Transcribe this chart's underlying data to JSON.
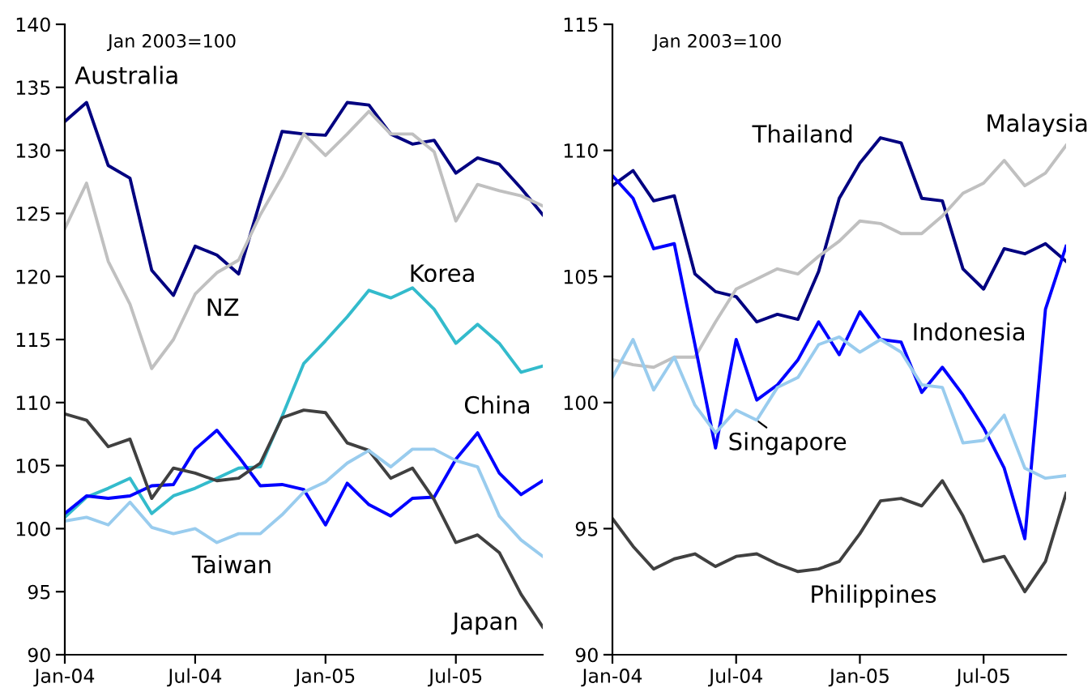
{
  "chart_data": [
    {
      "type": "line",
      "annotations": [
        "Jan 2003=100"
      ],
      "x": [
        "2004-01",
        "2004-02",
        "2004-03",
        "2004-04",
        "2004-05",
        "2004-06",
        "2004-07",
        "2004-08",
        "2004-09",
        "2004-10",
        "2004-11",
        "2004-12",
        "2005-01",
        "2005-02",
        "2005-03",
        "2005-04",
        "2005-05",
        "2005-06",
        "2005-07",
        "2005-08",
        "2005-09",
        "2005-10",
        "2005-11"
      ],
      "xlim": [
        "2004-01",
        "2005-11"
      ],
      "xticks": [
        {
          "value": "2004-01",
          "label": "Jan-04"
        },
        {
          "value": "2004-07",
          "label": "Jul-04"
        },
        {
          "value": "2005-01",
          "label": "Jan-05"
        },
        {
          "value": "2005-07",
          "label": "Jul-05"
        }
      ],
      "ylim": [
        90,
        140
      ],
      "yticks": [
        90,
        95,
        100,
        105,
        110,
        115,
        120,
        125,
        130,
        135,
        140
      ],
      "grid": false,
      "legend": false,
      "marker": "none",
      "line_style": "solid",
      "series": [
        {
          "name": "Australia",
          "color": "#000080",
          "values": [
            132.3,
            133.8,
            128.8,
            127.8,
            120.5,
            118.5,
            122.4,
            121.7,
            120.2,
            126.0,
            131.5,
            131.3,
            131.2,
            133.8,
            133.6,
            131.3,
            130.5,
            130.8,
            128.2,
            129.4,
            128.9,
            127.0,
            124.9
          ]
        },
        {
          "name": "NZ",
          "color": "#c0c0c0",
          "values": [
            123.8,
            127.4,
            121.2,
            117.8,
            112.7,
            115.0,
            118.6,
            120.3,
            121.3,
            124.9,
            127.9,
            131.3,
            129.6,
            131.3,
            133.1,
            131.3,
            131.3,
            129.9,
            124.4,
            127.3,
            126.8,
            126.4,
            125.6
          ]
        },
        {
          "name": "Korea",
          "color": "#33bbcc",
          "values": [
            100.9,
            102.5,
            103.2,
            104.0,
            101.2,
            102.6,
            103.2,
            104.0,
            104.8,
            104.9,
            108.9,
            113.1,
            114.9,
            116.8,
            118.9,
            118.3,
            119.1,
            117.4,
            114.7,
            116.2,
            114.7,
            112.4,
            112.9
          ]
        },
        {
          "name": "China",
          "color": "#0000ff",
          "values": [
            101.2,
            102.6,
            102.4,
            102.6,
            103.4,
            103.5,
            106.3,
            107.8,
            105.7,
            103.4,
            103.5,
            103.1,
            100.3,
            103.6,
            101.9,
            101.0,
            102.4,
            102.5,
            105.5,
            107.6,
            104.4,
            102.7,
            103.8
          ]
        },
        {
          "name": "Japan",
          "color": "#404040",
          "values": [
            109.1,
            108.6,
            106.5,
            107.1,
            102.4,
            104.8,
            104.4,
            103.8,
            104.0,
            105.2,
            108.8,
            109.4,
            109.2,
            106.8,
            106.2,
            104.0,
            104.8,
            102.3,
            98.9,
            99.5,
            98.1,
            94.8,
            92.2
          ]
        },
        {
          "name": "Taiwan",
          "color": "#99ccee",
          "values": [
            100.6,
            100.9,
            100.3,
            102.1,
            100.1,
            99.6,
            100.0,
            98.9,
            99.6,
            99.6,
            101.1,
            102.9,
            103.7,
            105.2,
            106.2,
            104.9,
            106.3,
            106.3,
            105.4,
            104.9,
            101.0,
            99.1,
            97.8
          ]
        }
      ]
    },
    {
      "type": "line",
      "annotations": [
        "Jan 2003=100"
      ],
      "x": [
        "2004-01",
        "2004-02",
        "2004-03",
        "2004-04",
        "2004-05",
        "2004-06",
        "2004-07",
        "2004-08",
        "2004-09",
        "2004-10",
        "2004-11",
        "2004-12",
        "2005-01",
        "2005-02",
        "2005-03",
        "2005-04",
        "2005-05",
        "2005-06",
        "2005-07",
        "2005-08",
        "2005-09",
        "2005-10",
        "2005-11"
      ],
      "xlim": [
        "2004-01",
        "2005-11"
      ],
      "xticks": [
        {
          "value": "2004-01",
          "label": "Jan-04"
        },
        {
          "value": "2004-07",
          "label": "Jul-04"
        },
        {
          "value": "2005-01",
          "label": "Jan-05"
        },
        {
          "value": "2005-07",
          "label": "Jul-05"
        }
      ],
      "ylim": [
        90,
        115
      ],
      "yticks": [
        90,
        95,
        100,
        105,
        110,
        115
      ],
      "grid": false,
      "legend": false,
      "marker": "none",
      "line_style": "solid",
      "series": [
        {
          "name": "Thailand",
          "color": "#000080",
          "values": [
            108.6,
            109.2,
            108.0,
            108.2,
            105.1,
            104.4,
            104.2,
            103.2,
            103.5,
            103.3,
            105.2,
            108.1,
            109.5,
            110.5,
            110.3,
            108.1,
            108.0,
            105.3,
            104.5,
            106.1,
            105.9,
            106.3,
            105.6
          ]
        },
        {
          "name": "Malaysia",
          "color": "#c0c0c0",
          "values": [
            101.7,
            101.5,
            101.4,
            101.8,
            101.8,
            103.2,
            104.5,
            104.9,
            105.3,
            105.1,
            105.8,
            106.4,
            107.2,
            107.1,
            106.7,
            106.7,
            107.4,
            108.3,
            108.7,
            109.6,
            108.6,
            109.1,
            110.2
          ]
        },
        {
          "name": "Indonesia",
          "color": "#0000ff",
          "values": [
            109.0,
            108.1,
            106.1,
            106.3,
            102.3,
            98.2,
            102.5,
            100.1,
            100.7,
            101.7,
            103.2,
            101.9,
            103.6,
            102.5,
            102.4,
            100.4,
            101.4,
            100.3,
            99.0,
            97.4,
            94.6,
            103.7,
            106.2
          ]
        },
        {
          "name": "Singapore",
          "color": "#99ccee",
          "values": [
            101.0,
            102.5,
            100.5,
            101.8,
            99.9,
            98.8,
            99.7,
            99.3,
            100.6,
            101.0,
            102.3,
            102.6,
            102.0,
            102.5,
            102.0,
            100.7,
            100.6,
            98.4,
            98.5,
            99.5,
            97.4,
            97.0,
            97.1
          ]
        },
        {
          "name": "Philippines",
          "color": "#404040",
          "values": [
            95.4,
            94.3,
            93.4,
            93.8,
            94.0,
            93.5,
            93.9,
            94.0,
            93.6,
            93.3,
            93.4,
            93.7,
            94.8,
            96.1,
            96.2,
            95.9,
            96.9,
            95.5,
            93.7,
            93.9,
            92.5,
            93.7,
            96.4
          ]
        }
      ]
    }
  ]
}
